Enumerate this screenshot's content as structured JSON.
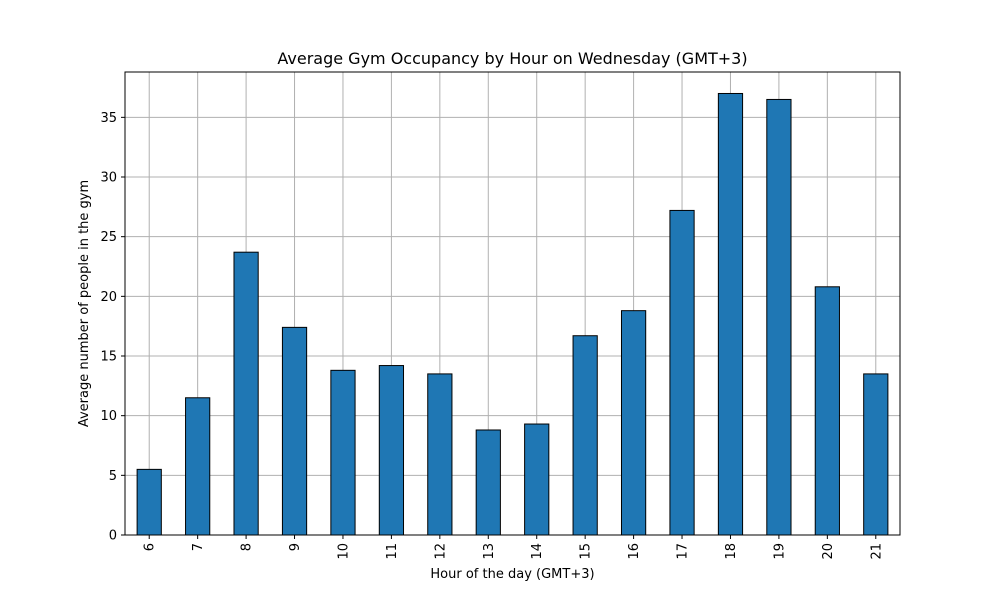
{
  "chart_data": {
    "type": "bar",
    "title": "Average Gym Occupancy by Hour on Wednesday (GMT+3)",
    "xlabel": "Hour of the day (GMT+3)",
    "ylabel": "Average number of people in the gym",
    "categories": [
      "6",
      "7",
      "8",
      "9",
      "10",
      "11",
      "12",
      "13",
      "14",
      "15",
      "16",
      "17",
      "18",
      "19",
      "20",
      "21"
    ],
    "values": [
      5.5,
      11.5,
      23.7,
      17.4,
      13.8,
      14.2,
      13.5,
      8.8,
      9.3,
      16.7,
      18.8,
      27.2,
      37.0,
      36.5,
      20.8,
      13.5
    ],
    "ylim": [
      0,
      38.8
    ],
    "yticks": [
      0,
      5,
      10,
      15,
      20,
      25,
      30,
      35
    ],
    "grid": true,
    "bar_color": "#1f77b4",
    "edge_color": "#000000",
    "grid_color": "#b0b0b0"
  }
}
